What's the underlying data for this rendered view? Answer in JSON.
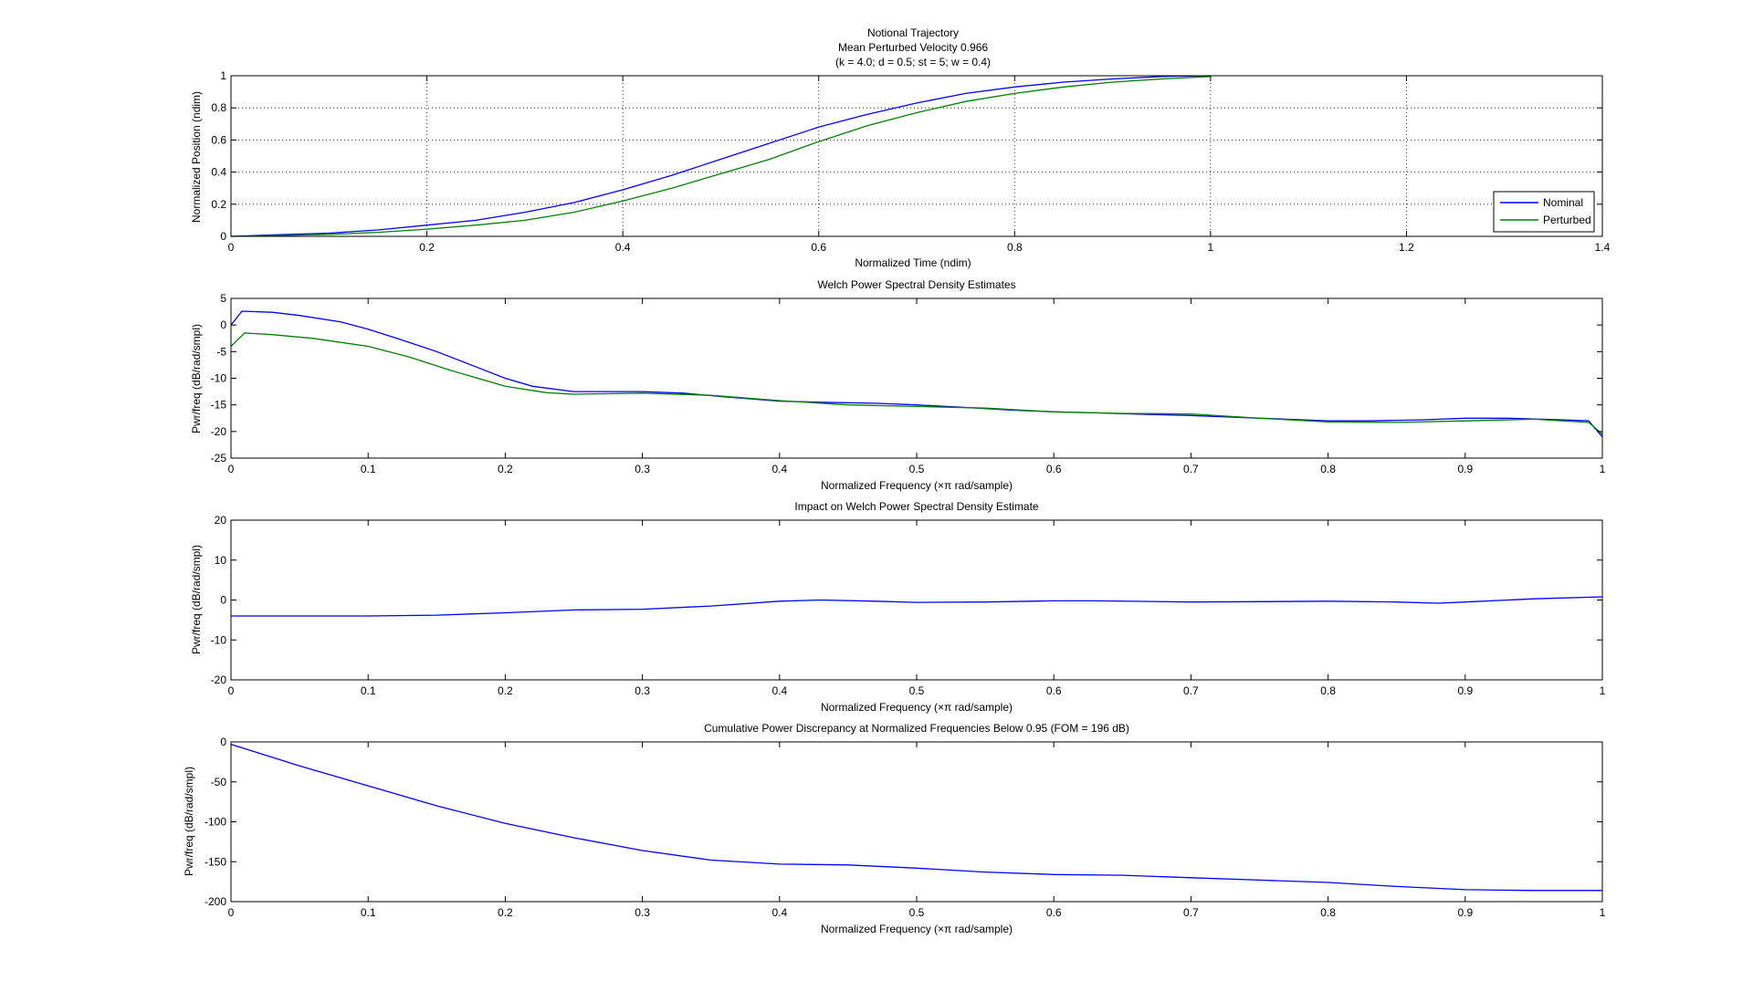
{
  "colors": {
    "nominal": "#0000ff",
    "perturbed": "#008000",
    "axis": "#000000",
    "grid": "#000000",
    "background": "#ffffff"
  },
  "chart_data": [
    {
      "type": "line",
      "title_lines": [
        "Notional Trajectory",
        "Mean Perturbed Velocity 0.966",
        "(k = 4.0; d = 0.5; st =  5; w = 0.4)"
      ],
      "xlabel": "Normalized Time (ndim)",
      "ylabel": "Normalized Position (ndim)",
      "xlim": [
        0,
        1.4
      ],
      "ylim": [
        0,
        1
      ],
      "xticks": [
        0,
        0.2,
        0.4,
        0.6,
        0.8,
        1,
        1.2,
        1.4
      ],
      "xtick_labels": [
        "0",
        "0.2",
        "0.4",
        "0.6",
        "0.8",
        "1",
        "1.2",
        "1.4"
      ],
      "yticks": [
        0,
        0.2,
        0.4,
        0.6,
        0.8,
        1
      ],
      "ytick_labels": [
        "0",
        "0.2",
        "0.4",
        "0.6",
        "0.8",
        "1"
      ],
      "grid": true,
      "legend": {
        "placement": "bottom-right",
        "entries": [
          "Nominal",
          "Perturbed"
        ]
      },
      "series": [
        {
          "name": "Nominal",
          "color": "nominal",
          "x": [
            0,
            0.05,
            0.1,
            0.15,
            0.2,
            0.25,
            0.3,
            0.35,
            0.4,
            0.45,
            0.5,
            0.55,
            0.6,
            0.65,
            0.7,
            0.75,
            0.8,
            0.85,
            0.9,
            0.95,
            1.0
          ],
          "y": [
            0,
            0.01,
            0.02,
            0.04,
            0.07,
            0.1,
            0.15,
            0.21,
            0.29,
            0.38,
            0.48,
            0.58,
            0.68,
            0.76,
            0.83,
            0.89,
            0.93,
            0.96,
            0.98,
            0.995,
            1.0
          ]
        },
        {
          "name": "Perturbed",
          "color": "perturbed",
          "x": [
            0,
            0.05,
            0.1,
            0.15,
            0.2,
            0.25,
            0.3,
            0.35,
            0.4,
            0.45,
            0.5,
            0.55,
            0.6,
            0.65,
            0.7,
            0.75,
            0.8,
            0.85,
            0.9,
            0.95,
            1.0
          ],
          "y": [
            0,
            0.005,
            0.012,
            0.025,
            0.045,
            0.07,
            0.1,
            0.15,
            0.22,
            0.3,
            0.39,
            0.48,
            0.59,
            0.69,
            0.77,
            0.84,
            0.89,
            0.93,
            0.96,
            0.98,
            0.995
          ]
        }
      ]
    },
    {
      "type": "line",
      "title_lines": [
        "Welch Power Spectral Density Estimates"
      ],
      "xlabel": "Normalized Frequency  (×π rad/sample)",
      "ylabel": "Pwr/freq (dB/rad/smpl)",
      "xlim": [
        0,
        1
      ],
      "ylim": [
        -25,
        5
      ],
      "xticks": [
        0,
        0.1,
        0.2,
        0.3,
        0.4,
        0.5,
        0.6,
        0.7,
        0.8,
        0.9,
        1
      ],
      "xtick_labels": [
        "0",
        "0.1",
        "0.2",
        "0.3",
        "0.4",
        "0.5",
        "0.6",
        "0.7",
        "0.8",
        "0.9",
        "1"
      ],
      "yticks": [
        -25,
        -20,
        -15,
        -10,
        -5,
        0,
        5
      ],
      "ytick_labels": [
        "-25",
        "-20",
        "-15",
        "-10",
        "-5",
        "0",
        "5"
      ],
      "grid": false,
      "series": [
        {
          "color": "nominal",
          "x": [
            0,
            0.008,
            0.03,
            0.05,
            0.08,
            0.1,
            0.12,
            0.15,
            0.18,
            0.2,
            0.22,
            0.25,
            0.3,
            0.33,
            0.36,
            0.4,
            0.43,
            0.47,
            0.5,
            0.53,
            0.57,
            0.6,
            0.63,
            0.67,
            0.7,
            0.73,
            0.77,
            0.8,
            0.83,
            0.87,
            0.9,
            0.93,
            0.97,
            0.99,
            1.0
          ],
          "y": [
            0,
            2.6,
            2.4,
            1.8,
            0.6,
            -0.8,
            -2.4,
            -5,
            -8,
            -10,
            -11.5,
            -12.5,
            -12.5,
            -12.8,
            -13.5,
            -14.3,
            -14.5,
            -14.7,
            -15,
            -15.4,
            -16,
            -16.3,
            -16.5,
            -16.8,
            -17,
            -17.3,
            -17.7,
            -18,
            -18,
            -17.8,
            -17.5,
            -17.5,
            -17.8,
            -18,
            -21
          ]
        },
        {
          "color": "perturbed",
          "x": [
            0,
            0.01,
            0.03,
            0.06,
            0.1,
            0.13,
            0.16,
            0.2,
            0.23,
            0.25,
            0.3,
            0.35,
            0.4,
            0.45,
            0.5,
            0.55,
            0.6,
            0.65,
            0.7,
            0.75,
            0.8,
            0.85,
            0.9,
            0.95,
            0.99,
            1.0
          ],
          "y": [
            -4,
            -1.5,
            -1.8,
            -2.5,
            -4,
            -6,
            -8.5,
            -11.5,
            -12.7,
            -13,
            -12.8,
            -13.2,
            -14.2,
            -15,
            -15.3,
            -15.6,
            -16.3,
            -16.6,
            -16.7,
            -17.5,
            -18.2,
            -18.3,
            -18,
            -17.7,
            -18.3,
            -20.5
          ]
        }
      ]
    },
    {
      "type": "line",
      "title_lines": [
        "Impact on Welch Power Spectral Density Estimate"
      ],
      "xlabel": "Normalized Frequency  (×π rad/sample)",
      "ylabel": "Pwr/freq (dB/rad/smpl)",
      "xlim": [
        0,
        1
      ],
      "ylim": [
        -20,
        20
      ],
      "xticks": [
        0,
        0.1,
        0.2,
        0.3,
        0.4,
        0.5,
        0.6,
        0.7,
        0.8,
        0.9,
        1
      ],
      "xtick_labels": [
        "0",
        "0.1",
        "0.2",
        "0.3",
        "0.4",
        "0.5",
        "0.6",
        "0.7",
        "0.8",
        "0.9",
        "1"
      ],
      "yticks": [
        -20,
        -10,
        0,
        10,
        20
      ],
      "ytick_labels": [
        "-20",
        "-10",
        "0",
        "10",
        "20"
      ],
      "grid": false,
      "series": [
        {
          "color": "nominal",
          "x": [
            0,
            0.05,
            0.1,
            0.15,
            0.2,
            0.25,
            0.3,
            0.35,
            0.4,
            0.43,
            0.47,
            0.5,
            0.55,
            0.6,
            0.63,
            0.7,
            0.75,
            0.8,
            0.85,
            0.88,
            0.9,
            0.95,
            1.0
          ],
          "y": [
            -4,
            -4,
            -4,
            -3.8,
            -3.2,
            -2.5,
            -2.3,
            -1.5,
            -0.3,
            0,
            -0.3,
            -0.6,
            -0.5,
            -0.2,
            -0.2,
            -0.5,
            -0.4,
            -0.3,
            -0.5,
            -0.8,
            -0.5,
            0.3,
            0.8
          ]
        }
      ]
    },
    {
      "type": "line",
      "title_lines": [
        "Cumulative Power Discrepancy at Normalized Frequencies Below 0.95 (FOM = 196 dB)"
      ],
      "xlabel": "Normalized Frequency  (×π rad/sample)",
      "ylabel": "Pwr/freq (dB/rad/smpl)",
      "xlim": [
        0,
        1
      ],
      "ylim": [
        -200,
        0
      ],
      "xticks": [
        0,
        0.1,
        0.2,
        0.3,
        0.4,
        0.5,
        0.6,
        0.7,
        0.8,
        0.9,
        1
      ],
      "xtick_labels": [
        "0",
        "0.1",
        "0.2",
        "0.3",
        "0.4",
        "0.5",
        "0.6",
        "0.7",
        "0.8",
        "0.9",
        "1"
      ],
      "yticks": [
        -200,
        -150,
        -100,
        -50,
        0
      ],
      "ytick_labels": [
        "-200",
        "-150",
        "-100",
        "-50",
        "0"
      ],
      "grid": false,
      "series": [
        {
          "color": "nominal",
          "x": [
            0,
            0.05,
            0.1,
            0.15,
            0.2,
            0.25,
            0.3,
            0.35,
            0.4,
            0.45,
            0.5,
            0.55,
            0.6,
            0.65,
            0.7,
            0.75,
            0.8,
            0.85,
            0.9,
            0.95,
            1.0
          ],
          "y": [
            -3,
            -30,
            -55,
            -80,
            -102,
            -120,
            -136,
            -148,
            -153,
            -154,
            -158,
            -163,
            -166,
            -167,
            -170,
            -173,
            -176,
            -181,
            -185,
            -186,
            -186
          ]
        }
      ]
    }
  ]
}
